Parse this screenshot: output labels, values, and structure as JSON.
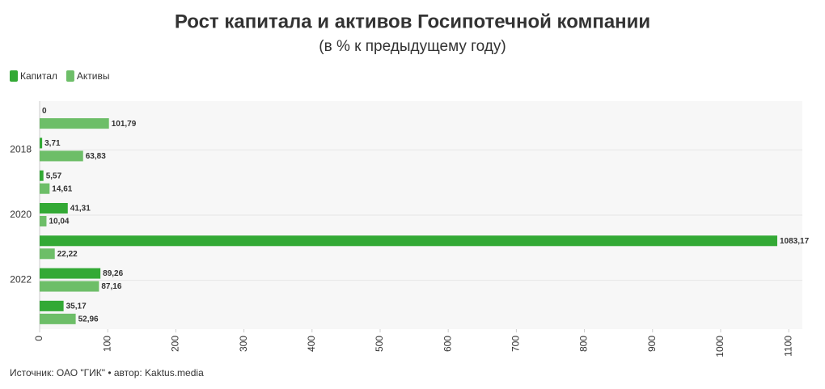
{
  "chart_data": {
    "type": "hbar",
    "title": "Рост капитала и активов Госипотечной компании",
    "subtitle": "(в % к предыдущему году)",
    "source": "Источник: ОАО \"ГИК\" • автор: Kaktus.media",
    "categories": [
      null,
      "2018",
      null,
      "2020",
      null,
      "2022",
      null
    ],
    "series": [
      {
        "name": "Капитал",
        "color": "#33a935",
        "values": [
          0,
          3.71,
          5.57,
          41.31,
          1083.17,
          89.26,
          35.17
        ],
        "value_labels": [
          "0",
          "3,71",
          "5,57",
          "41,31",
          "1083,17",
          "89,26",
          "35,17"
        ]
      },
      {
        "name": "Активы",
        "color": "#6dbe68",
        "values": [
          101.79,
          63.83,
          14.61,
          10.04,
          22.22,
          87.16,
          52.96
        ],
        "value_labels": [
          "101,79",
          "63,83",
          "14,61",
          "10,04",
          "22,22",
          "87,16",
          "52,96"
        ]
      }
    ],
    "xlim": [
      0,
      1120
    ],
    "xticks": [
      0,
      100,
      200,
      300,
      400,
      500,
      600,
      700,
      800,
      900,
      1000,
      1100
    ],
    "grid": true
  }
}
